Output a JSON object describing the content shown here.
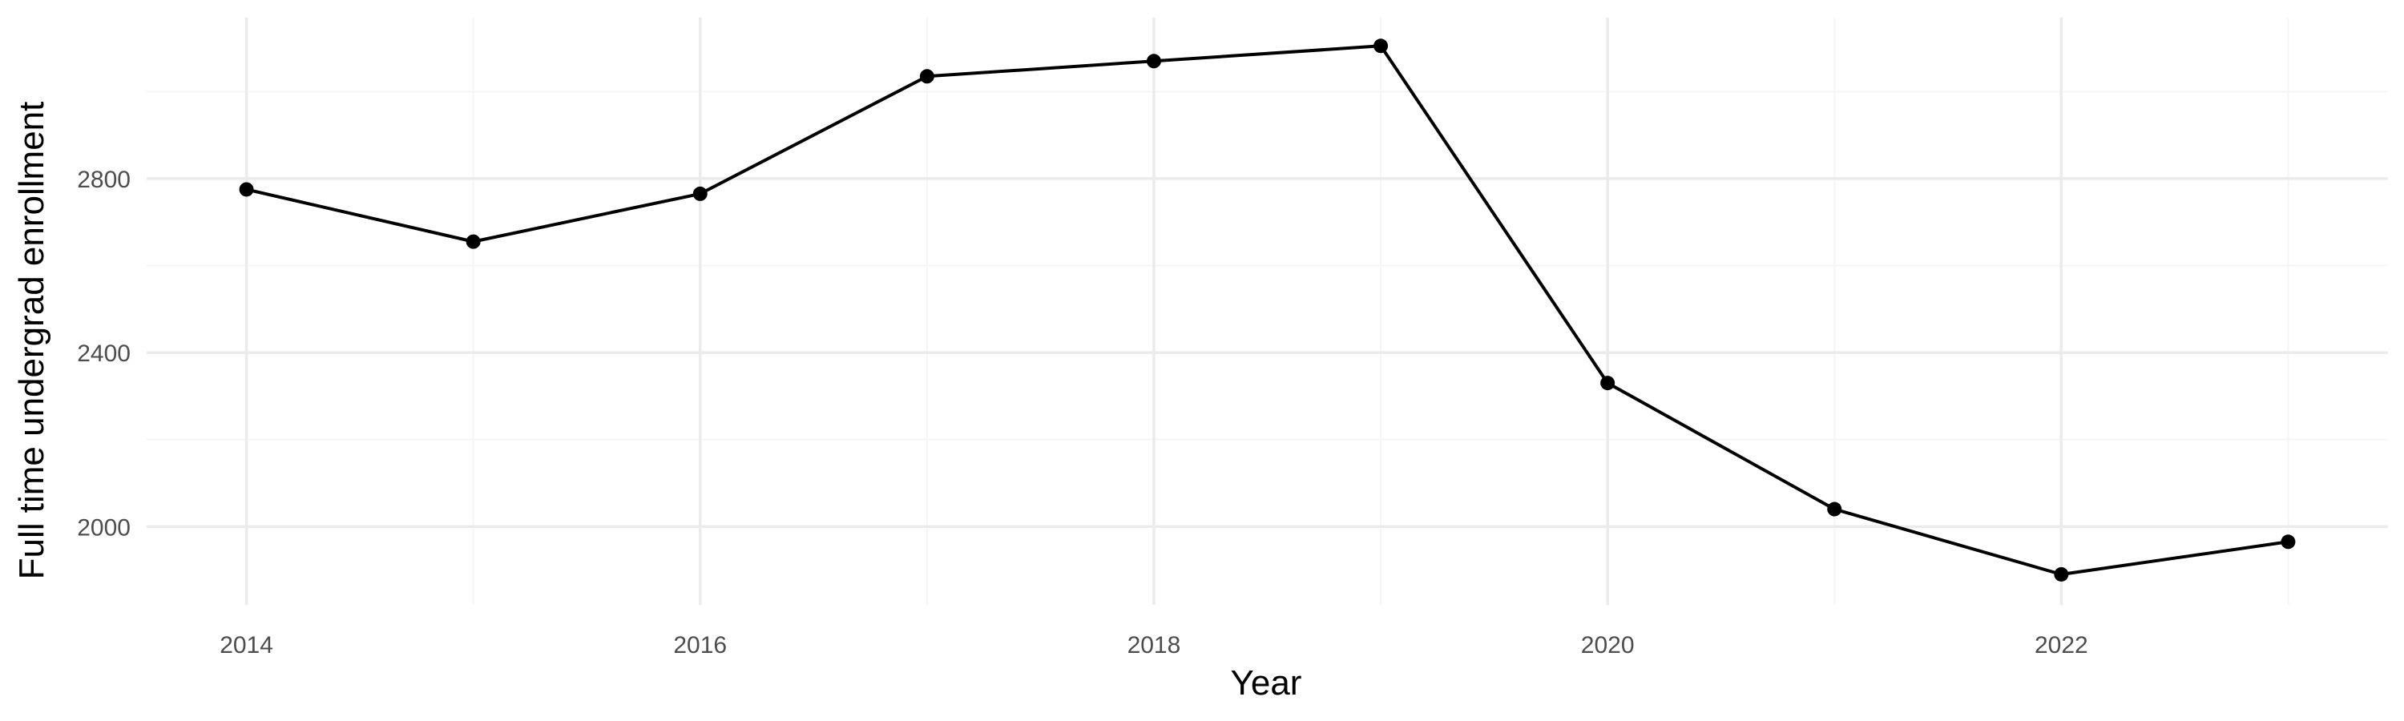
{
  "chart_data": {
    "type": "line",
    "title": "",
    "xlabel": "Year",
    "ylabel": "Full time undergrad enrollment",
    "x": [
      2014,
      2015,
      2016,
      2017,
      2018,
      2019,
      2020,
      2021,
      2022,
      2023
    ],
    "series": [
      {
        "values": [
          2775,
          2655,
          2765,
          3035,
          3070,
          3105,
          2330,
          2040,
          1890,
          1965
        ]
      }
    ],
    "xlim": [
      2013.56,
      2023.44
    ],
    "ylim": [
      1820,
      3170
    ],
    "x_ticks": [
      2014,
      2016,
      2018,
      2020,
      2022
    ],
    "x_minor_ticks": [
      2015,
      2017,
      2019,
      2021,
      2023
    ],
    "y_ticks": [
      2000,
      2400,
      2800
    ],
    "y_minor_ticks": [
      2200,
      2600,
      3000
    ],
    "x_tick_labels": [
      "2014",
      "2016",
      "2018",
      "2020",
      "2022"
    ],
    "y_tick_labels": [
      "2000",
      "2400",
      "2800"
    ],
    "grid": true,
    "legend": "none",
    "colors": {
      "line": "#000000",
      "point": "#000000",
      "grid_major": "#ebebeb",
      "grid_minor": "#f5f5f5",
      "tick_text": "#4d4d4d",
      "axis_text": "#000000"
    }
  }
}
